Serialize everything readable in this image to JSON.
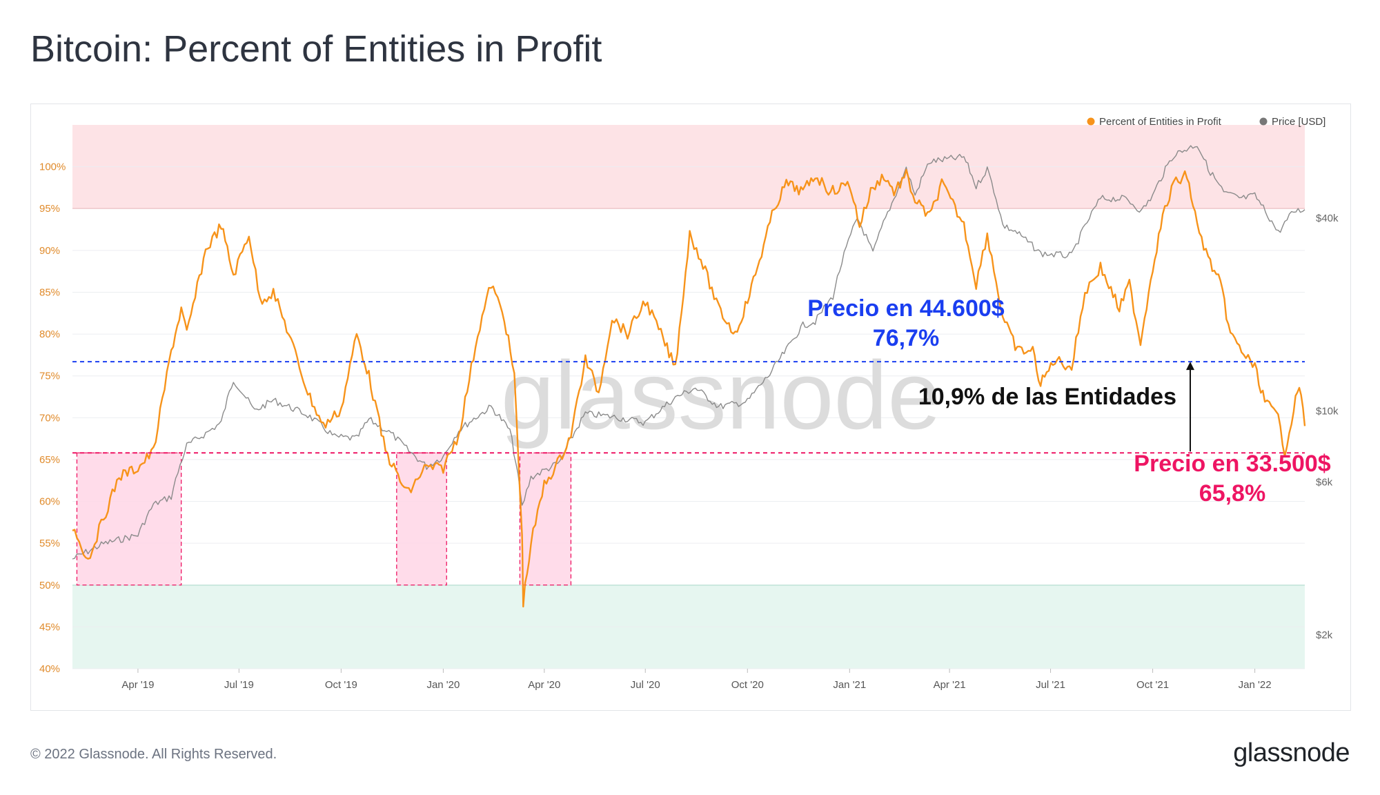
{
  "title": "Bitcoin: Percent of Entities in Profit",
  "footer": {
    "copyright": "© 2022 Glassnode. All Rights Reserved.",
    "logo": "glassnode"
  },
  "watermark": "glassnode",
  "colors": {
    "profit_line": "#f7931a",
    "price_line": "#8a8a8a",
    "upper_band": "#fde3e6",
    "lower_band": "#e6f6f0",
    "highlight_box": "#ffd6e6",
    "blue_annotation": "#1a3ef0",
    "pink_annotation": "#ee1563"
  },
  "chart_data": {
    "type": "line",
    "y_left": {
      "ticks": [
        "100%",
        "95%",
        "90%",
        "85%",
        "80%",
        "75%",
        "70%",
        "65%",
        "60%",
        "55%",
        "50%",
        "45%",
        "40%"
      ],
      "values": [
        100,
        95,
        90,
        85,
        80,
        75,
        70,
        65,
        60,
        55,
        50,
        45,
        40
      ],
      "range": [
        40,
        105
      ]
    },
    "y_right": {
      "ticks": [
        "$40k",
        "$10k",
        "$6k",
        "$2k"
      ],
      "values": [
        40000,
        10000,
        6000,
        2000
      ],
      "scale": "log"
    },
    "x_ticks": [
      "Apr '19",
      "Jul '19",
      "Oct '19",
      "Jan '20",
      "Apr '20",
      "Jul '20",
      "Oct '20",
      "Jan '21",
      "Apr '21",
      "Jul '21",
      "Oct '21",
      "Jan '22"
    ],
    "x_range": [
      "2019-02-01",
      "2022-02-15"
    ],
    "legend": [
      "Percent of Entities in Profit",
      "Price [USD]"
    ],
    "legend_position": "top-right",
    "bands": [
      {
        "from": 95,
        "to": 105,
        "color": "#fde3e6"
      },
      {
        "from": 40,
        "to": 50,
        "color": "#e6f6f0"
      }
    ],
    "series": [
      {
        "name": "Percent of Entities in Profit",
        "axis": "left",
        "dates": [
          "2019-02-01",
          "2019-02-15",
          "2019-03-01",
          "2019-03-15",
          "2019-04-01",
          "2019-04-15",
          "2019-05-01",
          "2019-05-10",
          "2019-05-15",
          "2019-06-01",
          "2019-06-15",
          "2019-06-26",
          "2019-07-10",
          "2019-07-20",
          "2019-08-01",
          "2019-08-15",
          "2019-09-01",
          "2019-09-15",
          "2019-10-01",
          "2019-10-15",
          "2019-10-26",
          "2019-11-10",
          "2019-11-25",
          "2019-12-01",
          "2019-12-15",
          "2020-01-01",
          "2020-01-15",
          "2020-02-01",
          "2020-02-13",
          "2020-02-25",
          "2020-03-05",
          "2020-03-12",
          "2020-03-13",
          "2020-03-20",
          "2020-04-01",
          "2020-04-15",
          "2020-04-25",
          "2020-05-08",
          "2020-05-20",
          "2020-06-01",
          "2020-06-15",
          "2020-07-01",
          "2020-07-15",
          "2020-07-28",
          "2020-08-10",
          "2020-08-20",
          "2020-09-05",
          "2020-09-20",
          "2020-10-01",
          "2020-10-10",
          "2020-10-25",
          "2020-11-05",
          "2020-11-20",
          "2020-12-01",
          "2020-12-15",
          "2021-01-01",
          "2021-01-10",
          "2021-01-20",
          "2021-02-01",
          "2021-02-10",
          "2021-02-21",
          "2021-03-01",
          "2021-03-14",
          "2021-03-25",
          "2021-04-14",
          "2021-04-25",
          "2021-05-05",
          "2021-05-19",
          "2021-06-01",
          "2021-06-15",
          "2021-06-22",
          "2021-07-05",
          "2021-07-20",
          "2021-08-01",
          "2021-08-15",
          "2021-09-01",
          "2021-09-10",
          "2021-09-20",
          "2021-10-01",
          "2021-10-10",
          "2021-10-20",
          "2021-11-01",
          "2021-11-10",
          "2021-11-20",
          "2021-12-01",
          "2021-12-10",
          "2021-12-20",
          "2022-01-01",
          "2022-01-10",
          "2022-01-22",
          "2022-01-28",
          "2022-02-05",
          "2022-02-10",
          "2022-02-15"
        ],
        "values": [
          57,
          53,
          58,
          63,
          64,
          66,
          78,
          83,
          80,
          90,
          93,
          87,
          92,
          84,
          85,
          80,
          73,
          69,
          71,
          80,
          75,
          66,
          62,
          61,
          64,
          64,
          68,
          80,
          86,
          82,
          75,
          56,
          48,
          55,
          62,
          65,
          68,
          77,
          73,
          82,
          80,
          84,
          80,
          76,
          92,
          89,
          83,
          80,
          84,
          88,
          95,
          98,
          97,
          99,
          97,
          98,
          93,
          97,
          99,
          97,
          99,
          96,
          94,
          98,
          93,
          86,
          92,
          82,
          78,
          78,
          74,
          77,
          76,
          85,
          88,
          83,
          86,
          79,
          88,
          94,
          98,
          99,
          93,
          89,
          86,
          80,
          78,
          76,
          72,
          70,
          66,
          71,
          74,
          69
        ]
      },
      {
        "name": "Price [USD]",
        "axis": "right",
        "dates": [
          "2019-02-01",
          "2019-03-01",
          "2019-04-01",
          "2019-04-15",
          "2019-05-01",
          "2019-05-15",
          "2019-06-01",
          "2019-06-15",
          "2019-06-26",
          "2019-07-15",
          "2019-08-01",
          "2019-08-15",
          "2019-09-01",
          "2019-09-25",
          "2019-10-15",
          "2019-10-26",
          "2019-11-15",
          "2019-12-01",
          "2019-12-17",
          "2020-01-01",
          "2020-01-15",
          "2020-02-13",
          "2020-03-01",
          "2020-03-12",
          "2020-03-20",
          "2020-04-15",
          "2020-05-08",
          "2020-06-01",
          "2020-07-01",
          "2020-07-28",
          "2020-08-15",
          "2020-09-05",
          "2020-10-01",
          "2020-10-21",
          "2020-11-05",
          "2020-11-20",
          "2020-12-01",
          "2020-12-17",
          "2021-01-08",
          "2021-01-22",
          "2021-02-10",
          "2021-02-21",
          "2021-03-01",
          "2021-03-14",
          "2021-04-14",
          "2021-04-25",
          "2021-05-05",
          "2021-05-19",
          "2021-06-01",
          "2021-06-22",
          "2021-07-20",
          "2021-08-15",
          "2021-09-07",
          "2021-09-21",
          "2021-10-01",
          "2021-10-20",
          "2021-11-10",
          "2021-11-20",
          "2021-12-04",
          "2021-12-20",
          "2022-01-01",
          "2022-01-22",
          "2022-02-05",
          "2022-02-15"
        ],
        "values": [
          3450,
          3850,
          4100,
          5100,
          5400,
          7800,
          8500,
          9200,
          12500,
          10000,
          10800,
          10300,
          9700,
          8300,
          8200,
          9400,
          8500,
          7500,
          6700,
          7200,
          8700,
          10300,
          8700,
          5000,
          6200,
          6900,
          9800,
          9600,
          9200,
          11000,
          11800,
          10300,
          10700,
          13000,
          15500,
          18500,
          19000,
          22800,
          40000,
          31000,
          46000,
          57000,
          47000,
          60000,
          62000,
          50000,
          57000,
          38000,
          36000,
          31000,
          30500,
          46000,
          46000,
          42000,
          47000,
          63000,
          68000,
          57000,
          48000,
          46000,
          47000,
          36000,
          42000,
          42500
        ]
      }
    ],
    "reference_lines": [
      {
        "value": 76.7,
        "style": "dashed",
        "color": "#1a3ef0"
      },
      {
        "value": 65.8,
        "style": "dashed",
        "color": "#ee1563"
      }
    ],
    "highlight_regions": [
      {
        "from": "2019-02-05",
        "to": "2019-05-10",
        "y": [
          50,
          65.8
        ]
      },
      {
        "from": "2019-11-20",
        "to": "2020-01-04",
        "y": [
          50,
          65.8
        ]
      },
      {
        "from": "2020-03-10",
        "to": "2020-04-25",
        "y": [
          50,
          65.8
        ]
      }
    ],
    "annotations": {
      "blue": {
        "line1": "Precio en 44.600$",
        "line2": "76,7%"
      },
      "pink": {
        "line1": "Precio en 33.500$",
        "line2": "65,8%"
      },
      "gap": "10,9% de las Entidades"
    }
  }
}
